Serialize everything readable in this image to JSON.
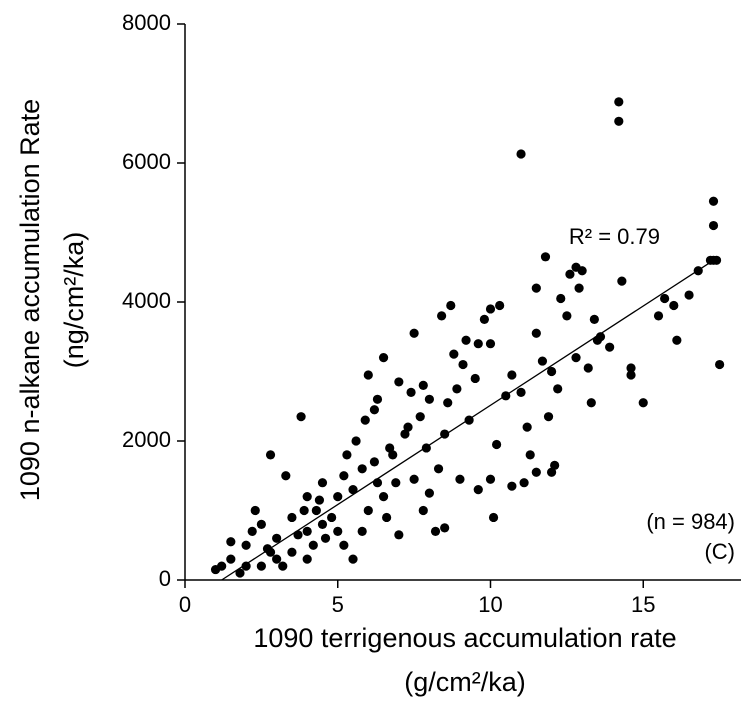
{
  "chart_data": {
    "type": "scatter",
    "x_label": [
      "1090 terrigenous accumulation rate",
      "(g/cm²/ka)"
    ],
    "y_label": [
      "1090 n-alkane accumulation Rate",
      "(ng/cm²/ka)"
    ],
    "annotations": [
      "R² = 0.79",
      "(n = 984)",
      "(C)"
    ],
    "xlim": [
      0,
      18.2
    ],
    "xticks": [
      0,
      5,
      10,
      15
    ],
    "ylim": [
      0,
      8000
    ],
    "yticks": [
      0,
      2000,
      4000,
      6000,
      8000
    ],
    "color": "#000000",
    "x": [
      14.2,
      14.2,
      11,
      17.3,
      17.3,
      17.3,
      17.2,
      17.5,
      16.8,
      16.5,
      16,
      15.7,
      15,
      14.6,
      14.6,
      13.4,
      13.5,
      13.9,
      12.3,
      11.8,
      12.8,
      13,
      14.3,
      12.9,
      11.5,
      12.5,
      13.3,
      12.2,
      11.9,
      12,
      12.1,
      11.3,
      11.5,
      10.3,
      10,
      8.7,
      8.4,
      7.5,
      9.2,
      9.6,
      10,
      9.5,
      8.9,
      8.6,
      8,
      7.8,
      7,
      6.5,
      6.2,
      6,
      10.5,
      10.7,
      11,
      10.2,
      10,
      9.6,
      10.1,
      9,
      8.3,
      8,
      7.5,
      7.8,
      6.5,
      6.8,
      7.2,
      8.5,
      9.3,
      8.2,
      8.5,
      10.7,
      11.1,
      11.2,
      7.9,
      7.3,
      6.2,
      6,
      5.5,
      5.2,
      5.6,
      5.8,
      5,
      4.5,
      3.8,
      2.8,
      3.3,
      4,
      4.3,
      4.8,
      4.6,
      5.2,
      5.5,
      5.8,
      4,
      3.5,
      3,
      2.5,
      2,
      2.3,
      1.5,
      1.2,
      1,
      1.8,
      2.5,
      3,
      3.5,
      4,
      3.2,
      2.8,
      2,
      1.5,
      2.7,
      3.7,
      4.2,
      4.5,
      5,
      3.9,
      4.4,
      2.2,
      6.3,
      6.6,
      7,
      6.9,
      9.8,
      9.1,
      8.8,
      7.7,
      7.4,
      6.7,
      5.3,
      5.9,
      6.3,
      12,
      11.7,
      12.8,
      13.2,
      13.6,
      11.5,
      12.6,
      15.5,
      16.1,
      17.4
    ],
    "y": [
      6880,
      6600,
      6130,
      5450,
      5100,
      4600,
      4600,
      3100,
      4450,
      4100,
      3950,
      4050,
      2550,
      3050,
      2950,
      3750,
      3450,
      3350,
      4050,
      4650,
      4500,
      4450,
      4300,
      4200,
      4200,
      3800,
      2550,
      2750,
      2350,
      1550,
      1650,
      1800,
      1550,
      3950,
      3900,
      3950,
      3800,
      3550,
      3450,
      3400,
      3400,
      2900,
      2750,
      2550,
      2600,
      2800,
      2850,
      3200,
      2450,
      2950,
      2650,
      2950,
      2700,
      1950,
      1450,
      1300,
      900,
      1450,
      1600,
      1250,
      1450,
      1000,
      1200,
      1800,
      2100,
      2100,
      2300,
      700,
      750,
      1350,
      1400,
      2200,
      1900,
      2200,
      1700,
      1000,
      1300,
      1500,
      2000,
      1600,
      1200,
      1400,
      2350,
      1800,
      1500,
      1200,
      1000,
      900,
      600,
      500,
      300,
      700,
      700,
      900,
      600,
      800,
      500,
      1000,
      300,
      200,
      150,
      100,
      200,
      300,
      400,
      300,
      200,
      400,
      200,
      550,
      450,
      650,
      500,
      800,
      700,
      1000,
      1150,
      700,
      1400,
      900,
      650,
      1400,
      3750,
      3100,
      3250,
      2350,
      2700,
      1900,
      1800,
      2300,
      2600,
      3000,
      3150,
      3200,
      3050,
      3500,
      3550,
      4400,
      3800,
      3450,
      4600
    ],
    "trendline": {
      "x": [
        1.2,
        17.4
      ],
      "y": [
        0,
        4628
      ]
    }
  }
}
